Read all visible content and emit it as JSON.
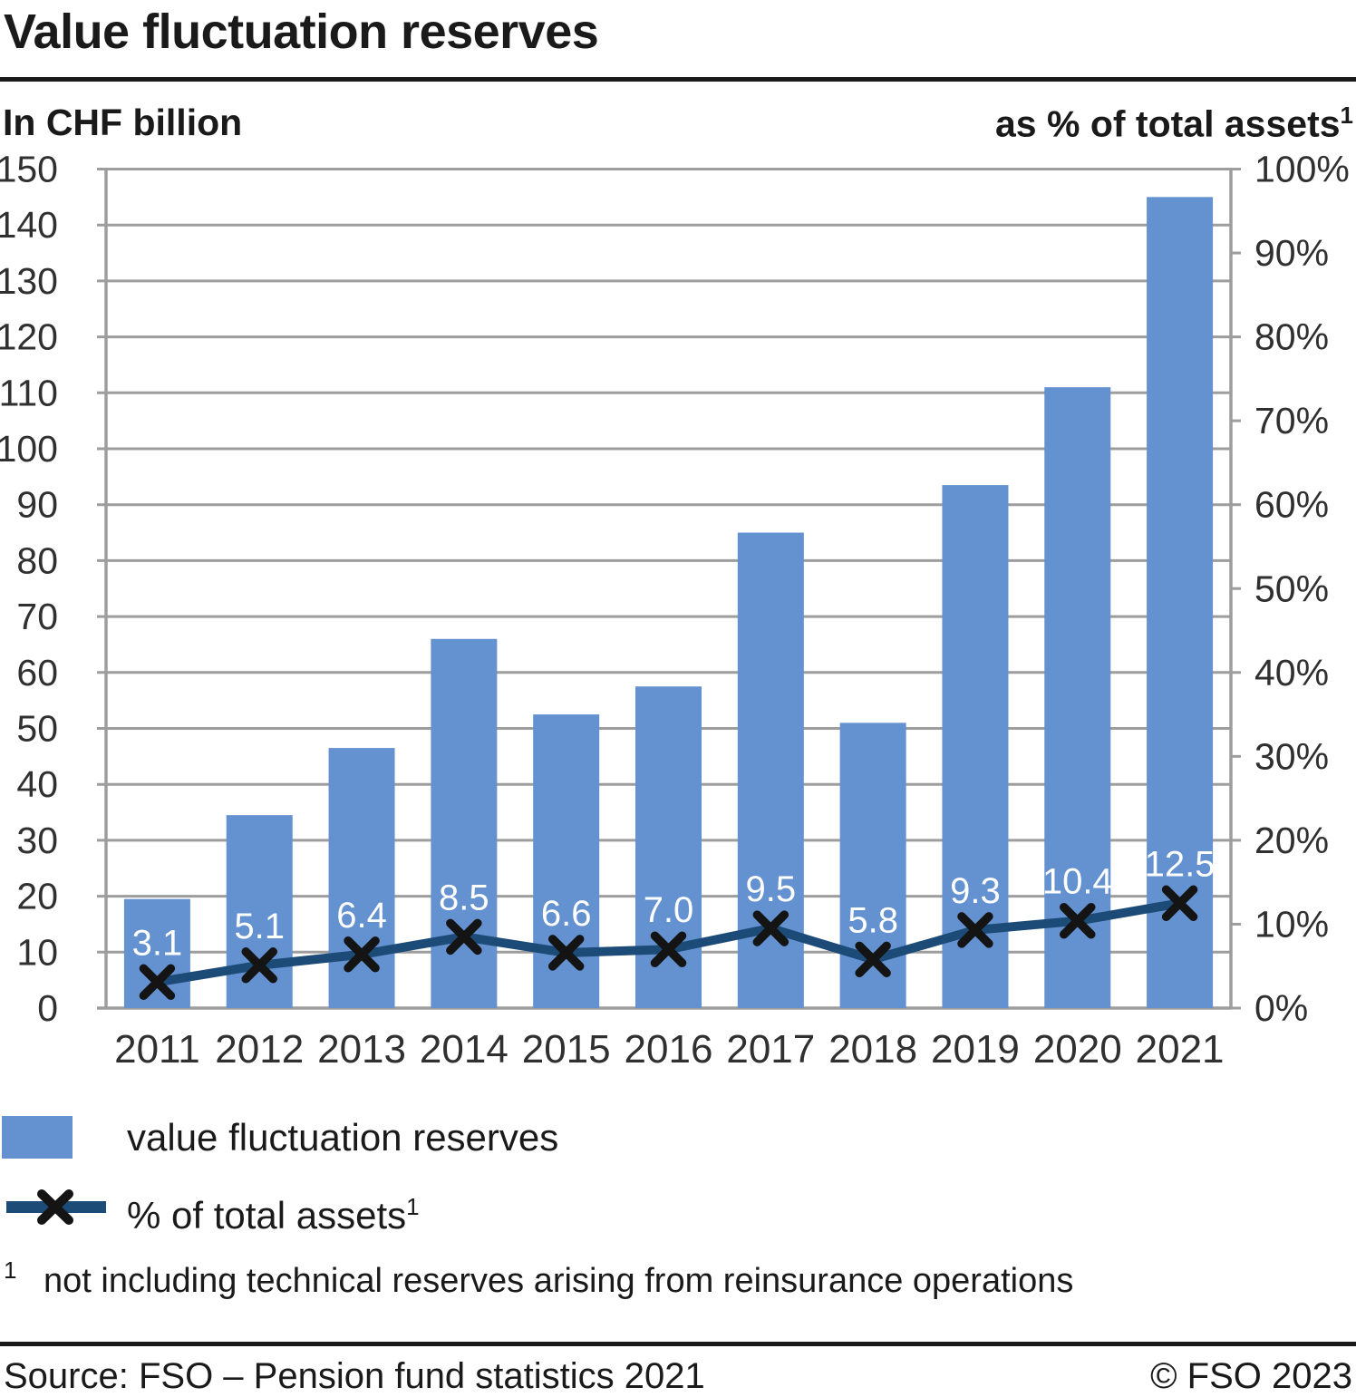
{
  "title": "Value fluctuation reserves",
  "left_axis_title": "In CHF billion",
  "right_axis_title": "as % of total assets",
  "right_axis_title_sup": "1",
  "legend": {
    "bars_label": "value fluctuation reserves",
    "line_label": "% of total assets",
    "line_label_sup": "1"
  },
  "footnote": {
    "sup": "1",
    "text": "not including technical reserves arising from reinsurance operations"
  },
  "footer": {
    "source": "Source: FSO – Pension fund statistics 2021",
    "copyright": "© FSO 2023"
  },
  "colors": {
    "bar": "#6491d0",
    "line": "#1d4b77",
    "marker": "#141414",
    "grid": "#9d9d9d",
    "axis": "#9d9d9d",
    "tick_label": "#303030",
    "data_label": "#ffffff"
  },
  "chart_data": {
    "type": "bar+line combo",
    "categories": [
      "2011",
      "2012",
      "2013",
      "2014",
      "2015",
      "2016",
      "2017",
      "2018",
      "2019",
      "2020",
      "2021"
    ],
    "series": [
      {
        "name": "value fluctuation reserves",
        "type": "bar",
        "axis": "left",
        "unit": "CHF billion",
        "values": [
          19.5,
          34.5,
          46.5,
          66,
          52.5,
          57.5,
          85,
          51,
          93.5,
          111,
          145
        ]
      },
      {
        "name": "% of total assets",
        "type": "line",
        "axis": "right",
        "unit": "%",
        "values": [
          3.1,
          5.1,
          6.4,
          8.5,
          6.6,
          7.0,
          9.5,
          5.8,
          9.3,
          10.4,
          12.5
        ],
        "point_labels": [
          "3.1",
          "5.1",
          "6.4",
          "8.5",
          "6.6",
          "7.0",
          "9.5",
          "5.8",
          "9.3",
          "10.4",
          "12.5"
        ],
        "marker": "x"
      }
    ],
    "left_axis": {
      "min": 0,
      "max": 150,
      "step": 10,
      "ticks": [
        "0",
        "10",
        "20",
        "30",
        "40",
        "50",
        "60",
        "70",
        "80",
        "90",
        "100",
        "110",
        "120",
        "130",
        "140",
        "150"
      ]
    },
    "right_axis": {
      "min": 0,
      "max": 100,
      "step": 10,
      "ticks": [
        "0%",
        "10%",
        "20%",
        "30%",
        "40%",
        "50%",
        "60%",
        "70%",
        "80%",
        "90%",
        "100%"
      ]
    },
    "grid": "horizontal, every 10 on left axis",
    "legend_position": "bottom-left"
  }
}
